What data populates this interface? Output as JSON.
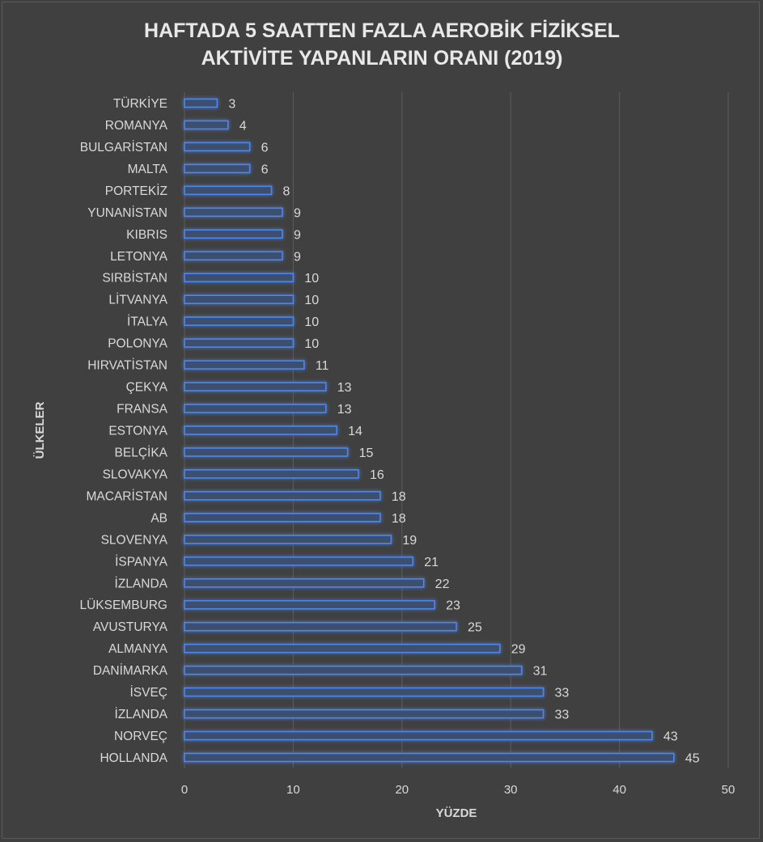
{
  "chart_data": {
    "type": "bar",
    "orientation": "horizontal",
    "title_lines": [
      "HAFTADA 5 SAATTEN FAZLA AEROBİK FİZİKSEL",
      "AKTİVİTE YAPANLARIN ORANI (2019)"
    ],
    "xlabel": "YÜZDE",
    "ylabel": "ÜLKELER",
    "xlim": [
      0,
      50
    ],
    "xticks": [
      0,
      10,
      20,
      30,
      40,
      50
    ],
    "grid": true,
    "legend": "none",
    "categories": [
      "TÜRKİYE",
      "ROMANYA",
      "BULGARİSTAN",
      "MALTA",
      "PORTEKİZ",
      "YUNANİSTAN",
      "KIBRIS",
      "LETONYA",
      "SIRBİSTAN",
      "LİTVANYA",
      "İTALYA",
      "POLONYA",
      "HIRVATİSTAN",
      "ÇEKYA",
      "FRANSA",
      "ESTONYA",
      "BELÇİKA",
      "SLOVAKYA",
      "MACARİSTAN",
      "AB",
      "SLOVENYA",
      "İSPANYA",
      "İZLANDA",
      "LÜKSEMBURG",
      "AVUSTURYA",
      "ALMANYA",
      "DANİMARKA",
      "İSVEÇ",
      "İZLANDA",
      "NORVEÇ",
      "HOLLANDA"
    ],
    "values": [
      3,
      4,
      6,
      6,
      8,
      9,
      9,
      9,
      10,
      10,
      10,
      10,
      11,
      13,
      13,
      14,
      15,
      16,
      18,
      18,
      19,
      21,
      22,
      23,
      25,
      29,
      31,
      33,
      33,
      43,
      45
    ],
    "colors": {
      "background": "#404040",
      "bar_fill": "#3e4f6e",
      "bar_edge": "#4f86e8",
      "bar_glow": "#3a6fd8",
      "gridline": "#5c5c5c",
      "text": "#d9d9d9",
      "title": "#e8e8e8"
    }
  }
}
